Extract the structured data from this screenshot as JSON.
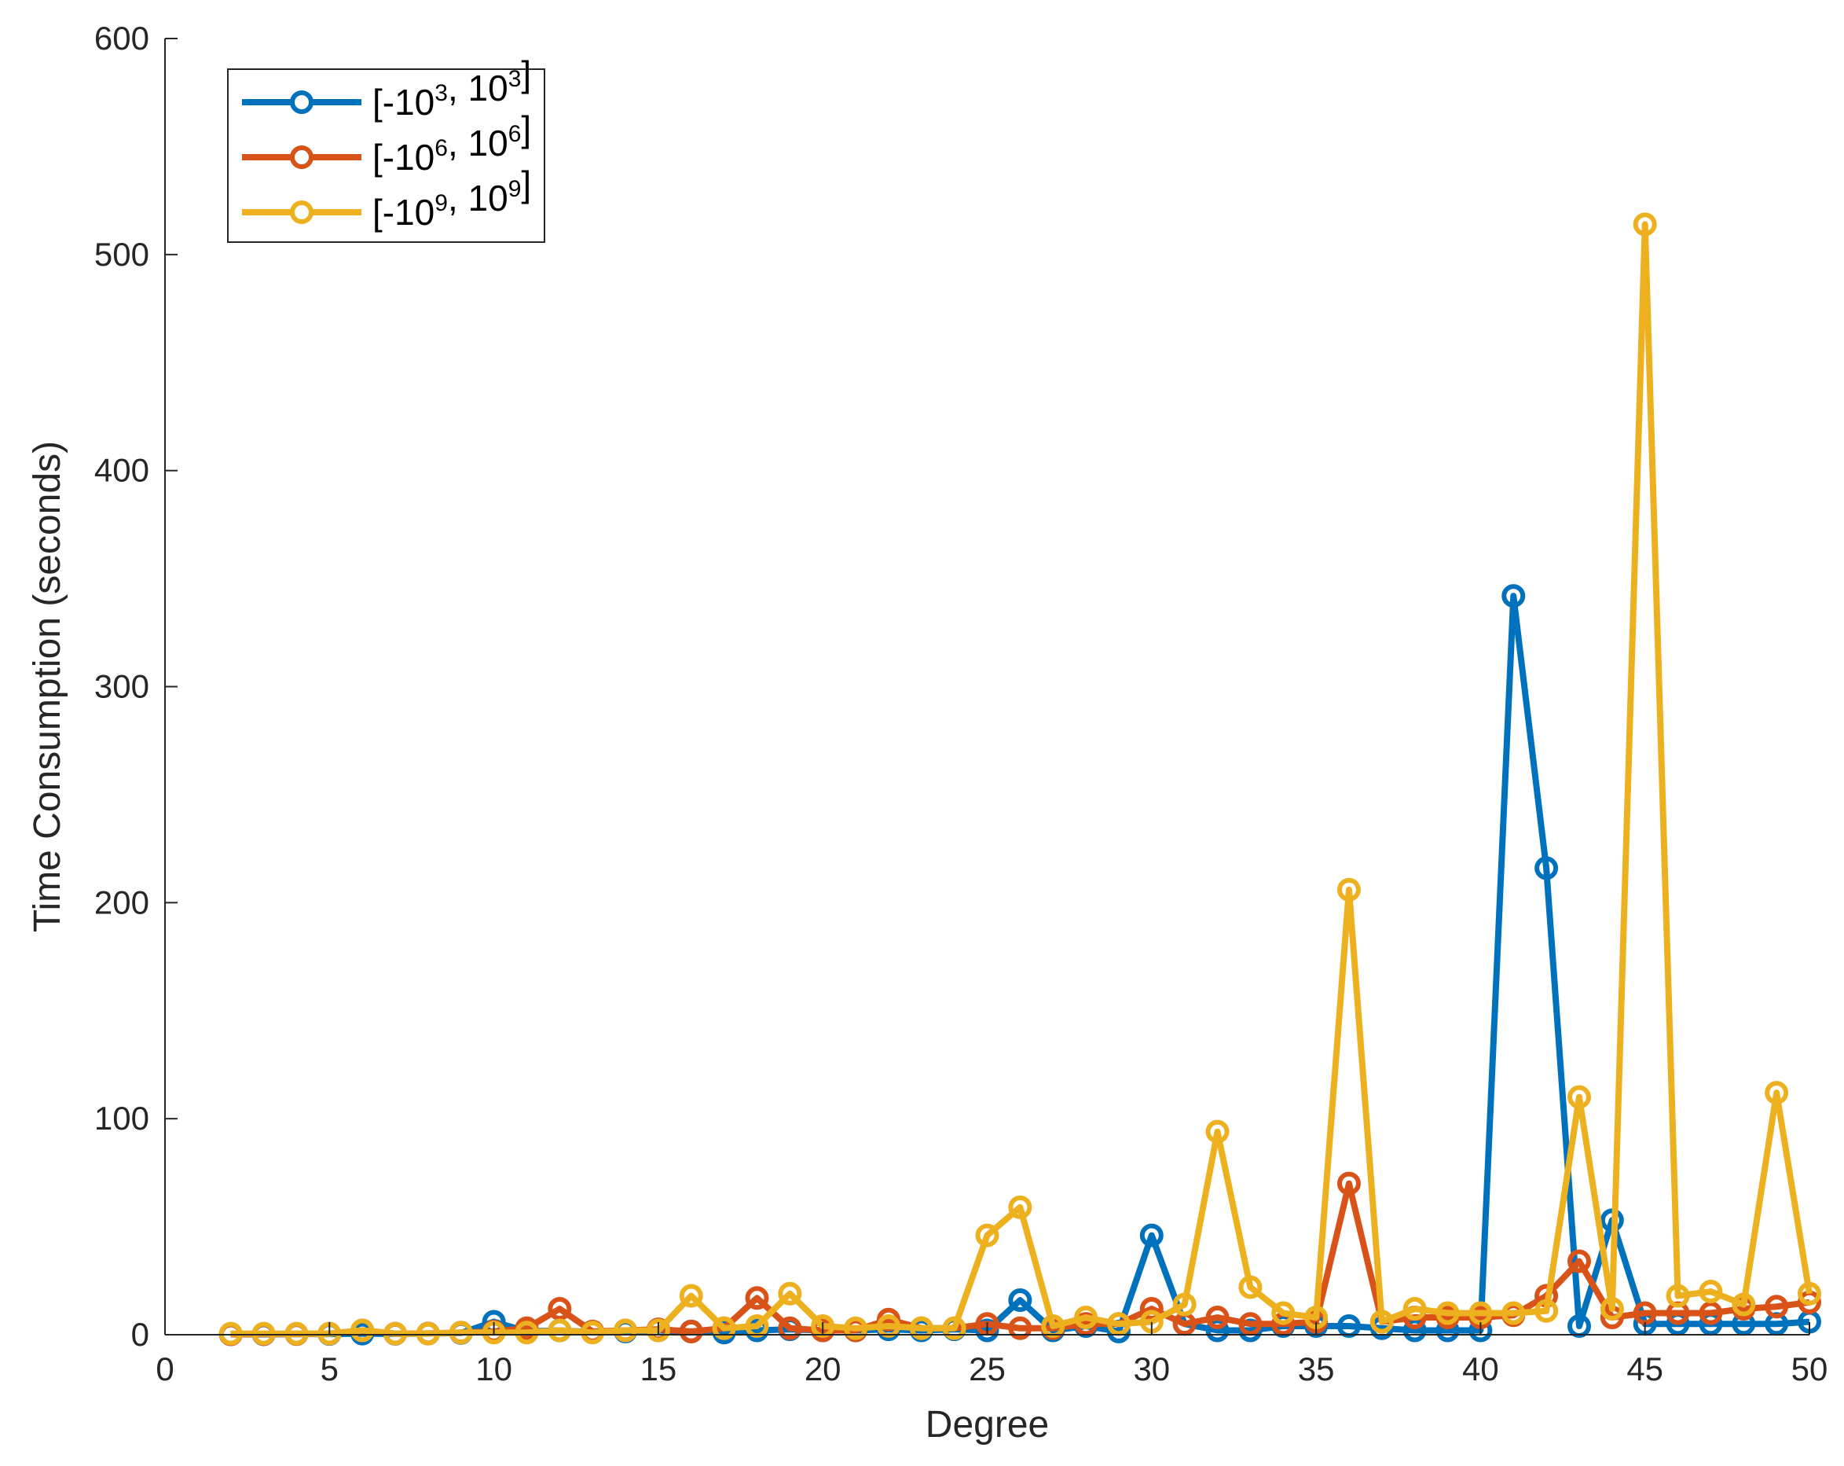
{
  "chart_data": {
    "type": "line",
    "title": "",
    "xlabel": "Degree",
    "ylabel": "Time Consumption (seconds)",
    "xlim": [
      0,
      50
    ],
    "ylim": [
      0,
      600
    ],
    "xticks": [
      0,
      5,
      10,
      15,
      20,
      25,
      30,
      35,
      40,
      45,
      50
    ],
    "yticks": [
      0,
      100,
      200,
      300,
      400,
      500,
      600
    ],
    "grid": false,
    "legend_position": "top-left",
    "marker": "circle",
    "x": [
      2,
      3,
      4,
      5,
      6,
      7,
      8,
      9,
      10,
      11,
      12,
      13,
      14,
      15,
      16,
      17,
      18,
      19,
      20,
      21,
      22,
      23,
      24,
      25,
      26,
      27,
      28,
      29,
      30,
      31,
      32,
      33,
      34,
      35,
      36,
      37,
      38,
      39,
      40,
      41,
      42,
      43,
      44,
      45,
      46,
      47,
      48,
      49,
      50
    ],
    "series": [
      {
        "name_base": "[-10",
        "name_exp1": "3",
        "name_mid": ", 10",
        "name_exp2": "3",
        "name_end": "]",
        "color": "#0072BD",
        "values": [
          0.2,
          0.2,
          0.3,
          0.3,
          0.5,
          0.4,
          0.5,
          0.8,
          6.0,
          1.5,
          2.0,
          1.2,
          1.5,
          2.0,
          1.5,
          1.0,
          2.0,
          2.5,
          2.0,
          2.0,
          2.5,
          2.0,
          2.5,
          2.0,
          16.0,
          2.0,
          4.0,
          1.5,
          46.0,
          5.0,
          2.0,
          2.0,
          4.0,
          4.0,
          4.0,
          3.0,
          2.0,
          2.0,
          2.0,
          342.0,
          216.0,
          4.0,
          53.0,
          5.0,
          5.0,
          5.0,
          5.0,
          5.0,
          6.0
        ]
      },
      {
        "name_base": "[-10",
        "name_exp1": "6",
        "name_mid": ", 10",
        "name_exp2": "6",
        "name_end": "]",
        "color": "#D95319",
        "values": [
          0.2,
          0.3,
          0.3,
          0.5,
          2.0,
          0.5,
          0.6,
          1.0,
          1.5,
          3.0,
          12.0,
          1.5,
          2.0,
          2.5,
          1.5,
          3.0,
          17.0,
          3.0,
          2.0,
          2.0,
          7.0,
          3.0,
          3.0,
          5.0,
          3.0,
          3.0,
          5.0,
          5.0,
          12.0,
          5.0,
          8.0,
          5.0,
          5.0,
          6.0,
          70.0,
          6.0,
          8.0,
          8.0,
          8.0,
          9.0,
          18.0,
          34.0,
          8.0,
          10.0,
          10.0,
          10.0,
          12.0,
          13.0,
          15.0
        ]
      },
      {
        "name_base": "[-10",
        "name_exp1": "9",
        "name_mid": ", 10",
        "name_exp2": "9",
        "name_end": "]",
        "color": "#EDB120",
        "values": [
          0.5,
          0.5,
          0.5,
          0.5,
          2.0,
          0.5,
          0.5,
          1.0,
          1.0,
          1.0,
          2.0,
          1.0,
          2.0,
          2.0,
          18.0,
          3.0,
          4.0,
          19.0,
          4.0,
          3.0,
          4.0,
          3.0,
          3.0,
          46.0,
          59.0,
          4.0,
          8.0,
          5.0,
          6.0,
          14.0,
          94.0,
          22.0,
          10.0,
          8.0,
          206.0,
          6.0,
          12.0,
          10.0,
          10.0,
          10.0,
          11.0,
          110.0,
          12.0,
          514.0,
          18.0,
          20.0,
          14.0,
          112.0,
          19.0
        ]
      }
    ]
  }
}
